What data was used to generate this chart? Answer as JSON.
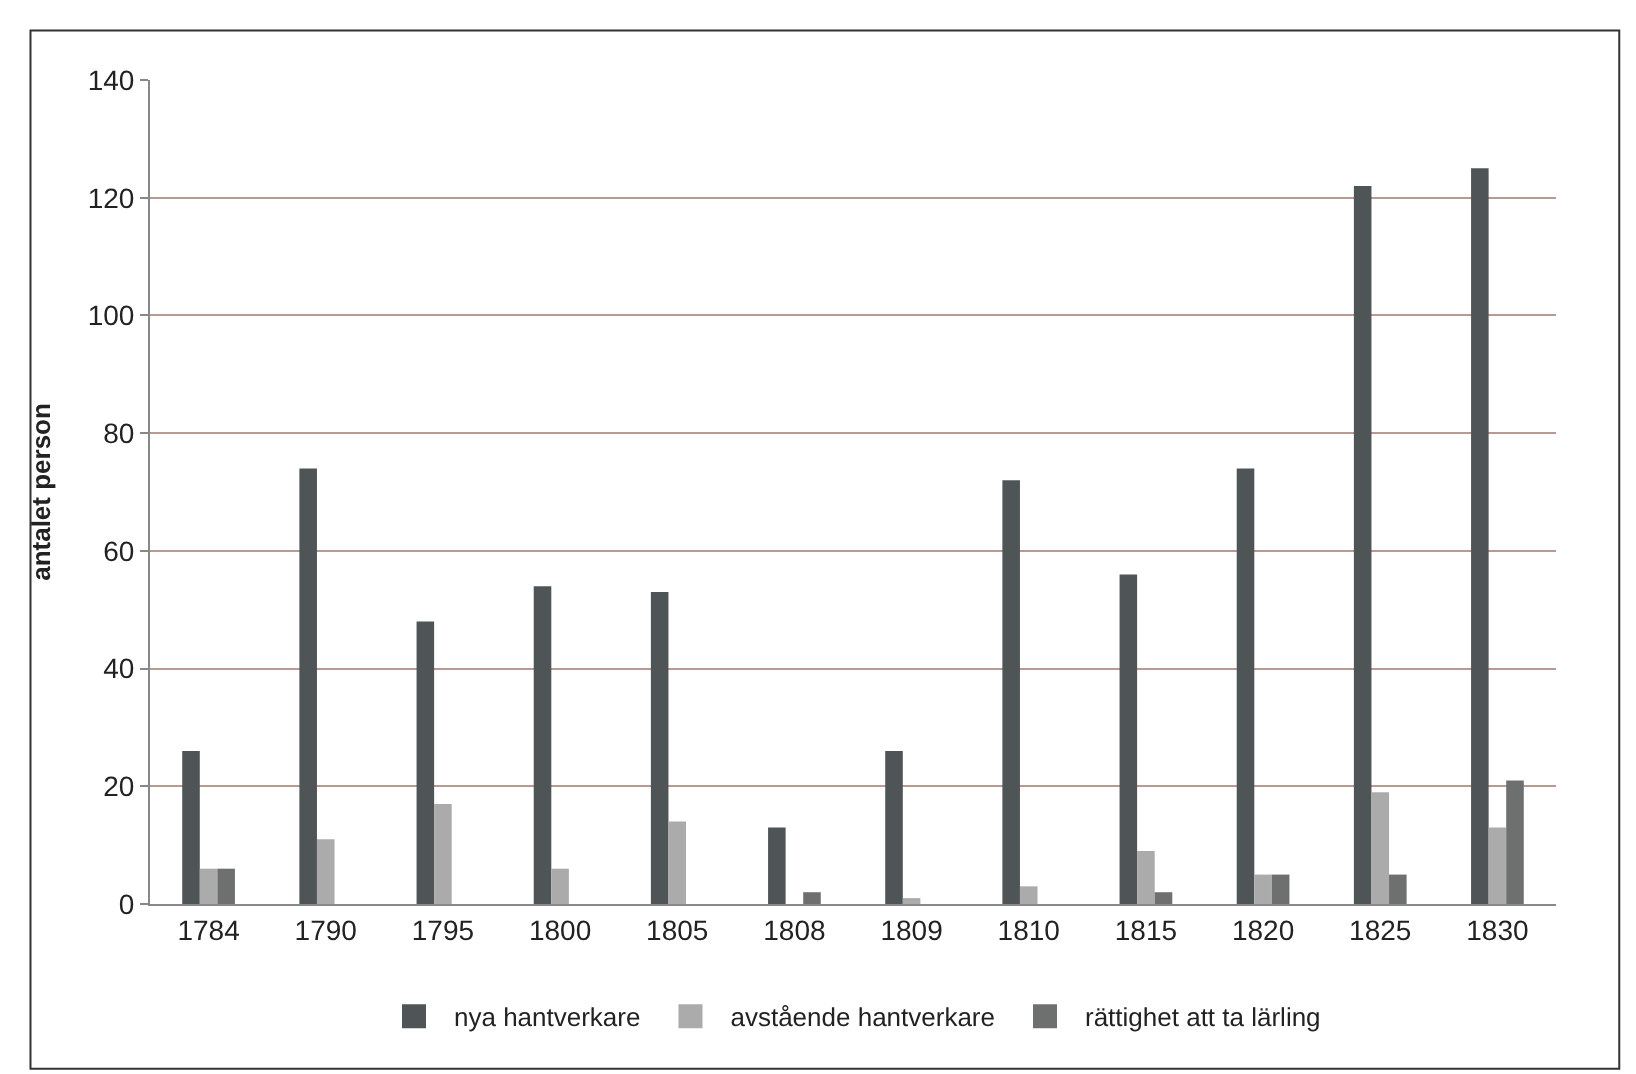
{
  "chart_data": {
    "type": "bar",
    "ylabel": "antalet person",
    "categories": [
      "1784",
      "1790",
      "1795",
      "1800",
      "1805",
      "1808",
      "1809",
      "1810",
      "1815",
      "1820",
      "1825",
      "1830"
    ],
    "series": [
      {
        "name": "nya hantverkare",
        "color": "#4f5456",
        "values": [
          26,
          74,
          48,
          54,
          53,
          13,
          26,
          72,
          56,
          74,
          122,
          125
        ]
      },
      {
        "name": "avstående hantverkare",
        "color": "#ababab",
        "values": [
          6,
          11,
          17,
          6,
          14,
          0,
          1,
          3,
          9,
          5,
          19,
          13
        ]
      },
      {
        "name": "rättighet att ta lärling",
        "color": "#6e7070",
        "values": [
          6,
          0,
          0,
          0,
          0,
          2,
          0,
          0,
          2,
          5,
          5,
          21
        ]
      }
    ],
    "ylim": [
      0,
      140
    ],
    "yticks": [
      0,
      20,
      40,
      60,
      80,
      100,
      120,
      140
    ],
    "grid": "y",
    "legend": "bottom"
  }
}
